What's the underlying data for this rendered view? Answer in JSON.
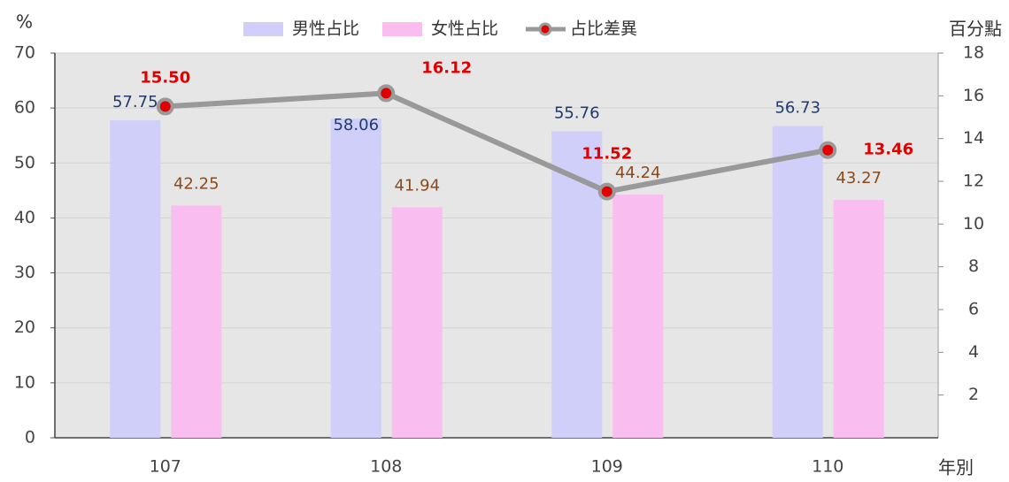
{
  "chart_data": {
    "type": "bar-line",
    "y_label": "%",
    "y2_label": "百分點",
    "x_label": "年別",
    "categories": [
      "107",
      "108",
      "109",
      "110"
    ],
    "series": [
      {
        "name": "男性占比",
        "color": "#cfcffa",
        "label_color": "#1f3a6e",
        "values": [
          57.75,
          58.06,
          55.76,
          56.73
        ]
      },
      {
        "name": "女性占比",
        "color": "#fabdef",
        "label_color": "#8b4a1e",
        "values": [
          42.25,
          41.94,
          44.24,
          43.27
        ]
      },
      {
        "name": "占比差異",
        "type": "line",
        "axis": "y2",
        "color": "#999999",
        "marker_color": "#e00000",
        "label_color": "#e00000",
        "values": [
          15.5,
          16.12,
          11.52,
          13.46
        ],
        "value_labels": [
          "15.50",
          "16.12",
          "11.52",
          "13.46"
        ]
      }
    ],
    "ylim": [
      0,
      70
    ],
    "yticks": [
      0,
      10,
      20,
      30,
      40,
      50,
      60,
      70
    ],
    "y2lim": [
      0,
      18
    ],
    "y2ticks": [
      2,
      4,
      6,
      8,
      10,
      12,
      14,
      16,
      18
    ],
    "grid": true
  }
}
